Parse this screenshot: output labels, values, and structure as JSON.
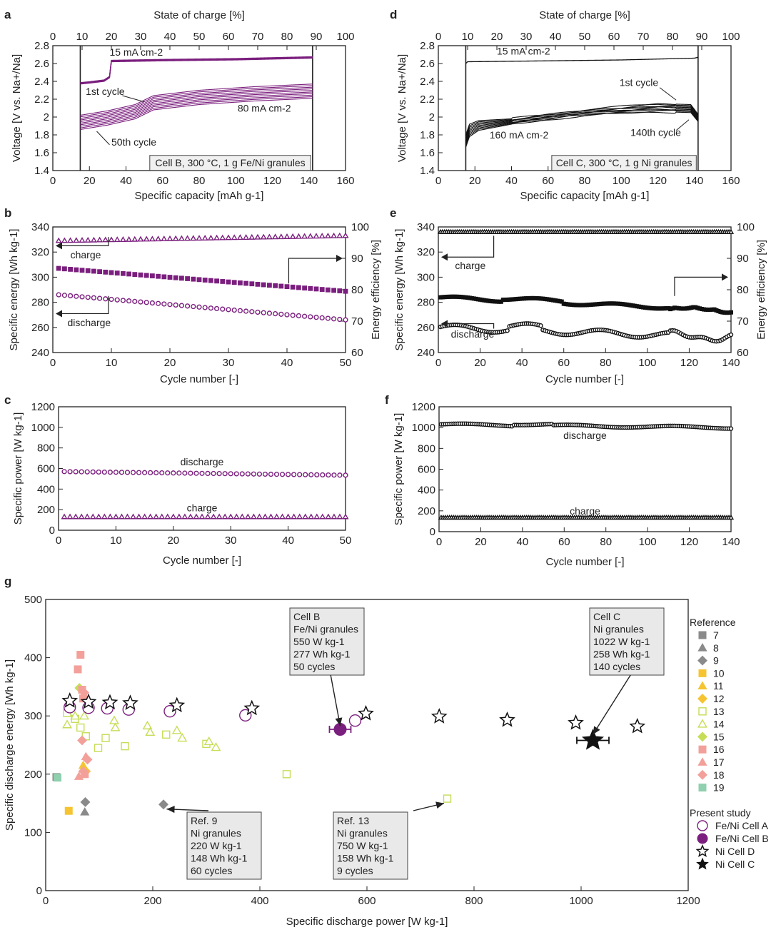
{
  "figure": {
    "panel_labels": [
      "a",
      "b",
      "c",
      "d",
      "e",
      "f",
      "g"
    ]
  },
  "chart_data": [
    {
      "id": "a",
      "type": "line",
      "top_axis_label": "State of charge [%]",
      "xlabel": "Specific capacity [mAh g-1]",
      "ylabel": "Voltage [V vs. Na+/Na]",
      "xlim": [
        0,
        160
      ],
      "ylim": [
        1.4,
        2.8
      ],
      "top_lim": [
        0,
        100
      ],
      "x_ticks": [
        0,
        20,
        40,
        60,
        80,
        100,
        120,
        140,
        160
      ],
      "y_ticks": [
        1.4,
        1.6,
        1.8,
        2.0,
        2.2,
        2.4,
        2.6,
        2.8
      ],
      "top_ticks": [
        0,
        10,
        20,
        30,
        40,
        50,
        60,
        70,
        80,
        90,
        100
      ],
      "annotations": [
        "15 mA cm-2",
        "1st cycle",
        "80 mA cm-2",
        "50th cycle"
      ],
      "boxed_label": "Cell B, 300 °C, 1 g Fe/Ni granules",
      "color": "#7b1f7e",
      "charge_curve": {
        "x": [
          15,
          20,
          28,
          31,
          32,
          60,
          100,
          142
        ],
        "y": [
          2.37,
          2.38,
          2.4,
          2.44,
          2.62,
          2.63,
          2.64,
          2.66
        ]
      },
      "discharge_first": {
        "x": [
          15,
          30,
          45,
          55,
          80,
          110,
          142
        ],
        "y": [
          2.02,
          2.07,
          2.14,
          2.24,
          2.3,
          2.34,
          2.37
        ]
      },
      "discharge_last": {
        "x": [
          15,
          30,
          45,
          55,
          80,
          110,
          142
        ],
        "y": [
          1.86,
          1.91,
          1.98,
          2.08,
          2.14,
          2.18,
          2.21
        ]
      },
      "cycle_bracket": [
        15,
        142
      ]
    },
    {
      "id": "b",
      "type": "scatter",
      "xlabel": "Cycle number [-]",
      "ylabel": "Specific energy [Wh kg-1]",
      "ylabel_right": "Energy efficiency [%]",
      "xlim": [
        0,
        50
      ],
      "ylim": [
        240,
        340
      ],
      "ylim_right": [
        60,
        100
      ],
      "x_ticks": [
        0,
        10,
        20,
        30,
        40,
        50
      ],
      "y_ticks": [
        240,
        260,
        280,
        300,
        320,
        340
      ],
      "y_ticks_right": [
        60,
        70,
        80,
        90,
        100
      ],
      "labels": [
        "charge",
        "discharge"
      ],
      "color": "#7b1f7e",
      "series": [
        {
          "name": "charge",
          "marker": "triangle",
          "x_range": [
            1,
            50
          ],
          "start": 329,
          "end": 333
        },
        {
          "name": "discharge",
          "marker": "circle",
          "x_range": [
            1,
            50
          ],
          "start": 286,
          "end": 266
        },
        {
          "name": "energy efficiency",
          "marker": "square",
          "axis": "right",
          "x_range": [
            1,
            50
          ],
          "start": 86.8,
          "end": 79.5
        }
      ]
    },
    {
      "id": "c",
      "type": "scatter",
      "xlabel": "Cycle number [-]",
      "ylabel": "Specific power [W kg-1]",
      "xlim": [
        0,
        50
      ],
      "ylim": [
        0,
        1200
      ],
      "x_ticks": [
        0,
        10,
        20,
        30,
        40,
        50
      ],
      "y_ticks": [
        0,
        200,
        400,
        600,
        800,
        1000,
        1200
      ],
      "labels": [
        "discharge",
        "charge"
      ],
      "color": "#7b1f7e",
      "series": [
        {
          "name": "discharge",
          "marker": "circle",
          "x_range": [
            1,
            50
          ],
          "start": 570,
          "end": 535
        },
        {
          "name": "charge",
          "marker": "triangle",
          "x_range": [
            1,
            50
          ],
          "start": 130,
          "end": 130
        }
      ]
    },
    {
      "id": "d",
      "type": "line",
      "top_axis_label": "State of charge [%]",
      "xlabel": "Specific capacity [mAh g-1]",
      "ylabel": "Voltage [V vs. Na+/Na]",
      "xlim": [
        0,
        160
      ],
      "ylim": [
        1.4,
        2.8
      ],
      "top_lim": [
        0,
        100
      ],
      "x_ticks": [
        0,
        20,
        40,
        60,
        80,
        100,
        120,
        140,
        160
      ],
      "y_ticks": [
        1.4,
        1.6,
        1.8,
        2.0,
        2.2,
        2.4,
        2.6,
        2.8
      ],
      "top_ticks": [
        0,
        10,
        20,
        30,
        40,
        50,
        60,
        70,
        80,
        90,
        100
      ],
      "annotations": [
        "15 mA cm-2",
        "1st cycle",
        "160 mA cm-2",
        "140th cycle"
      ],
      "boxed_label": "Cell C, 300 °C, 1 g Ni granules",
      "color": "#111111",
      "charge_curve": {
        "x": [
          15,
          16,
          60,
          100,
          140,
          142
        ],
        "y": [
          2.6,
          2.62,
          2.63,
          2.64,
          2.66,
          2.67
        ]
      },
      "discharge_first": {
        "x": [
          15,
          17,
          22,
          40,
          80,
          120,
          138,
          142
        ],
        "y": [
          1.8,
          1.92,
          1.96,
          1.98,
          2.08,
          2.15,
          2.14,
          2.03
        ]
      },
      "discharge_last": {
        "x": [
          15,
          17,
          22,
          40,
          80,
          120,
          138,
          142
        ],
        "y": [
          1.66,
          1.78,
          1.85,
          1.92,
          2.02,
          2.06,
          2.05,
          1.95
        ]
      },
      "cycle_bracket": [
        15,
        142
      ]
    },
    {
      "id": "e",
      "type": "scatter",
      "xlabel": "Cycle number [-]",
      "ylabel": "Specific energy [Wh kg-1]",
      "ylabel_right": "Energy efficiency [%]",
      "xlim": [
        0,
        140
      ],
      "ylim": [
        240,
        340
      ],
      "ylim_right": [
        60,
        100
      ],
      "x_ticks": [
        0,
        20,
        40,
        60,
        80,
        100,
        120,
        140
      ],
      "y_ticks": [
        240,
        260,
        280,
        300,
        320,
        340
      ],
      "y_ticks_right": [
        60,
        70,
        80,
        90,
        100
      ],
      "labels": [
        "charge",
        "discharge"
      ],
      "color": "#111111",
      "series": [
        {
          "name": "charge",
          "marker": "triangle",
          "x_range": [
            1,
            140
          ],
          "start": 336,
          "end": 336
        },
        {
          "name": "discharge",
          "marker": "circle",
          "x_range": [
            1,
            140
          ],
          "start": 260,
          "end": 252
        },
        {
          "name": "energy efficiency",
          "marker": "square",
          "axis": "right",
          "x_range": [
            1,
            140
          ],
          "start": 77.5,
          "end": 73.5
        }
      ]
    },
    {
      "id": "f",
      "type": "scatter",
      "xlabel": "Cycle number [-]",
      "ylabel": "Specific power [W kg-1]",
      "xlim": [
        0,
        140
      ],
      "ylim": [
        0,
        1200
      ],
      "x_ticks": [
        0,
        20,
        40,
        60,
        80,
        100,
        120,
        140
      ],
      "y_ticks": [
        0,
        200,
        400,
        600,
        800,
        1000,
        1200
      ],
      "labels": [
        "discharge",
        "charge"
      ],
      "color": "#111111",
      "series": [
        {
          "name": "discharge",
          "marker": "circle",
          "x_range": [
            1,
            140
          ],
          "start": 1030,
          "end": 1000
        },
        {
          "name": "charge",
          "marker": "triangle",
          "x_range": [
            1,
            140
          ],
          "start": 135,
          "end": 135
        }
      ]
    },
    {
      "id": "g",
      "type": "scatter",
      "xlabel": "Specific discharge power [W kg-1]",
      "ylabel": "Specific discharge energy [Wh kg-1]",
      "xlim": [
        0,
        1200
      ],
      "ylim": [
        0,
        500
      ],
      "x_ticks": [
        0,
        200,
        400,
        600,
        800,
        1000,
        1200
      ],
      "y_ticks": [
        0,
        100,
        200,
        300,
        400,
        500
      ],
      "legend_title": "Reference",
      "legend_title_present": "Present study",
      "references": [
        {
          "name": "7",
          "marker": "square",
          "color": "#8a8a8a",
          "filled": true,
          "points": [
            [
              20,
              195
            ]
          ]
        },
        {
          "name": "8",
          "marker": "triangle",
          "color": "#8a8a8a",
          "filled": true,
          "points": [
            [
              73,
              135
            ]
          ]
        },
        {
          "name": "9",
          "marker": "diamond",
          "color": "#8a8a8a",
          "filled": true,
          "points": [
            [
              74,
              152
            ],
            [
              220,
              148
            ]
          ]
        },
        {
          "name": "10",
          "marker": "square",
          "color": "#f5c430",
          "filled": true,
          "points": [
            [
              43,
              137
            ]
          ]
        },
        {
          "name": "11",
          "marker": "triangle",
          "color": "#f5c430",
          "filled": true,
          "points": [
            [
              70,
              215
            ]
          ]
        },
        {
          "name": "12",
          "marker": "diamond",
          "color": "#f5c430",
          "filled": true,
          "points": [
            [
              75,
              205
            ]
          ]
        },
        {
          "name": "13",
          "marker": "square",
          "color": "#c6dd57",
          "filled": false,
          "points": [
            [
              40,
              305
            ],
            [
              55,
              295
            ],
            [
              65,
              280
            ],
            [
              75,
              265
            ],
            [
              98,
              245
            ],
            [
              112,
              262
            ],
            [
              148,
              248
            ],
            [
              225,
              268
            ],
            [
              300,
              252
            ],
            [
              450,
              200
            ],
            [
              750,
              158
            ]
          ]
        },
        {
          "name": "14",
          "marker": "triangle",
          "color": "#c6dd57",
          "filled": false,
          "points": [
            [
              40,
              285
            ],
            [
              55,
              300
            ],
            [
              72,
              300
            ],
            [
              128,
              292
            ],
            [
              130,
              280
            ],
            [
              190,
              283
            ],
            [
              195,
              272
            ],
            [
              245,
              275
            ],
            [
              255,
              262
            ],
            [
              305,
              256
            ],
            [
              318,
              246
            ]
          ]
        },
        {
          "name": "15",
          "marker": "diamond",
          "color": "#c6dd57",
          "filled": true,
          "points": [
            [
              63,
              348
            ]
          ]
        },
        {
          "name": "16",
          "marker": "square",
          "color": "#f3a09a",
          "filled": true,
          "points": [
            [
              60,
              380
            ],
            [
              65,
              405
            ],
            [
              68,
              345
            ],
            [
              70,
              330
            ],
            [
              73,
              200
            ]
          ]
        },
        {
          "name": "17",
          "marker": "triangle",
          "color": "#f3a09a",
          "filled": true,
          "points": [
            [
              62,
              196
            ],
            [
              75,
              230
            ]
          ]
        },
        {
          "name": "18",
          "marker": "diamond",
          "color": "#f3a09a",
          "filled": true,
          "points": [
            [
              68,
              258
            ],
            [
              72,
              340
            ],
            [
              78,
              225
            ],
            [
              70,
              205
            ]
          ]
        },
        {
          "name": "19",
          "marker": "square",
          "color": "#8fd0ae",
          "filled": true,
          "points": [
            [
              22,
              194
            ]
          ]
        }
      ],
      "present_study": [
        {
          "name": "Fe/Ni Cell A",
          "marker": "circle",
          "color": "#7b1f7e",
          "filled": false,
          "points": [
            [
              45,
              315
            ],
            [
              80,
              314
            ],
            [
              115,
              313
            ],
            [
              155,
              311
            ],
            [
              232,
              308
            ],
            [
              373,
              301
            ],
            [
              578,
              292
            ]
          ]
        },
        {
          "name": "Fe/Ni Cell B",
          "marker": "circle",
          "color": "#7b1f7e",
          "filled": true,
          "points": [
            [
              550,
              277
            ]
          ],
          "error_x": 20,
          "error_y": 8
        },
        {
          "name": "Ni Cell D",
          "marker": "star",
          "color": "#111111",
          "filled": false,
          "points": [
            [
              45,
              326
            ],
            [
              80,
              324
            ],
            [
              120,
              323
            ],
            [
              158,
              322
            ],
            [
              245,
              318
            ],
            [
              385,
              313
            ],
            [
              598,
              304
            ],
            [
              735,
              299
            ],
            [
              862,
              293
            ],
            [
              990,
              288
            ],
            [
              1105,
              282
            ]
          ]
        },
        {
          "name": "Ni Cell C",
          "marker": "star",
          "color": "#111111",
          "filled": true,
          "points": [
            [
              1022,
              258
            ]
          ],
          "error_x": 30,
          "error_y": 6
        }
      ],
      "callouts": [
        {
          "lines": [
            "Cell B",
            "Fe/Ni granules",
            "550 W kg-1",
            "277 Wh kg-1",
            "50 cycles"
          ]
        },
        {
          "lines": [
            "Cell C",
            "Ni granules",
            "1022 W kg-1",
            "258 Wh kg-1",
            "140 cycles"
          ]
        },
        {
          "lines": [
            "Ref. 9",
            "Ni granules",
            "220 W kg-1",
            "148 Wh kg-1",
            "60 cycles"
          ]
        },
        {
          "lines": [
            "Ref. 13",
            "Ni granules",
            "750 W kg-1",
            "158 Wh kg-1",
            "9 cycles"
          ]
        }
      ]
    }
  ]
}
